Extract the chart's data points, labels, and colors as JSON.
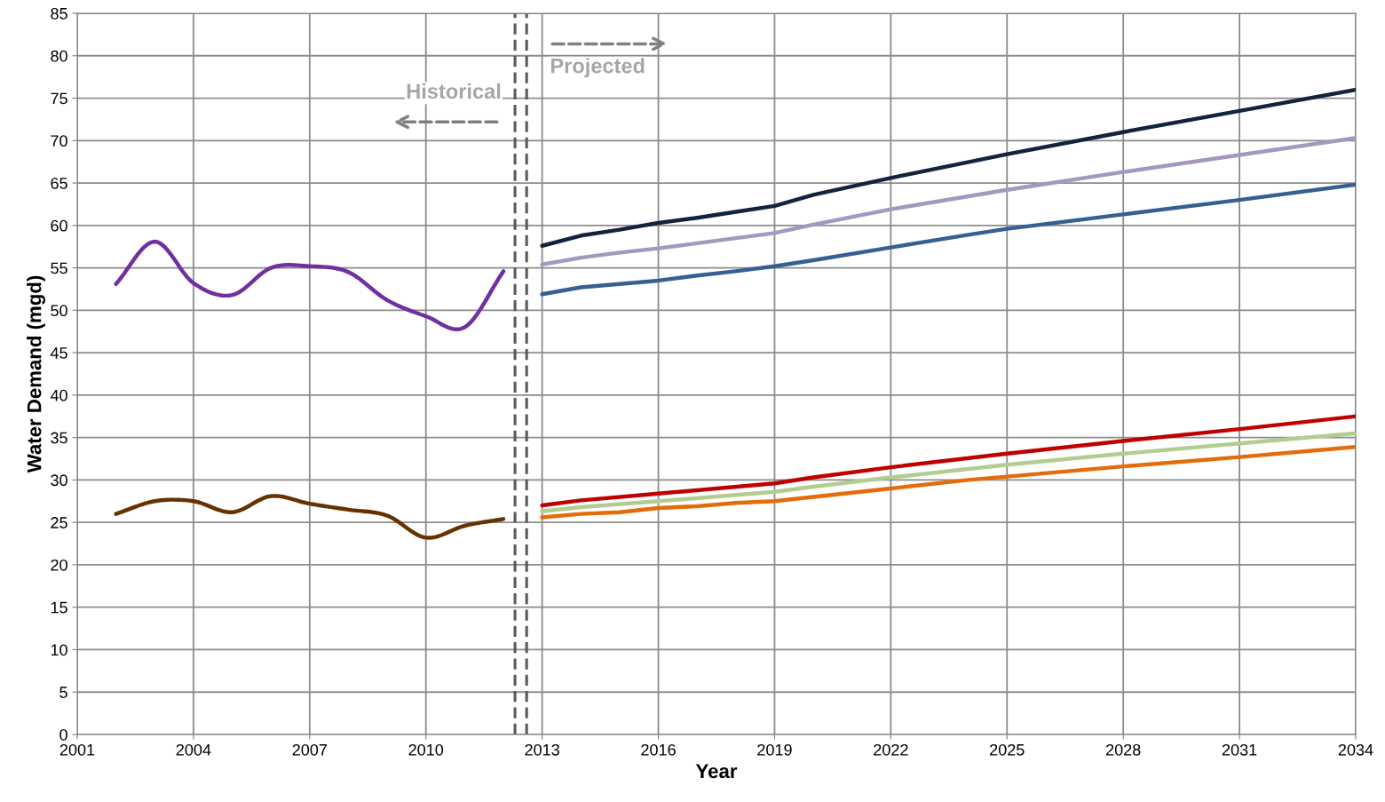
{
  "chart_data": {
    "type": "line",
    "xlabel": "Year",
    "ylabel": "Water Demand (mgd)",
    "xlim": [
      2001,
      2034
    ],
    "xticks": [
      2001,
      2004,
      2007,
      2010,
      2013,
      2016,
      2019,
      2022,
      2025,
      2028,
      2031,
      2034
    ],
    "ylim": [
      0,
      85
    ],
    "yticks": [
      0,
      5,
      10,
      15,
      20,
      25,
      30,
      35,
      40,
      45,
      50,
      55,
      60,
      65,
      70,
      75,
      80,
      85
    ],
    "grid": true,
    "line_style": "solid",
    "marker": "none",
    "annotations": [
      "Historical",
      "Projected"
    ],
    "ref_lines": [
      {
        "axis": "x",
        "value": 2012.3,
        "color": "#595959",
        "line_style": "dashed"
      },
      {
        "axis": "x",
        "value": 2012.6,
        "color": "#595959",
        "line_style": "dashed"
      }
    ],
    "series": [
      {
        "color": "#7030a0",
        "x": [
          2002,
          2003,
          2004,
          2005,
          2006,
          2007,
          2008,
          2009,
          2010,
          2011,
          2012
        ],
        "values": [
          53.1,
          58.1,
          53.2,
          51.8,
          55.0,
          55.2,
          54.5,
          51.2,
          49.3,
          48.0,
          54.6
        ]
      },
      {
        "color": "#663300",
        "x": [
          2002,
          2003,
          2004,
          2005,
          2006,
          2007,
          2008,
          2009,
          2010,
          2011,
          2012
        ],
        "values": [
          26.0,
          27.5,
          27.5,
          26.2,
          28.1,
          27.2,
          26.5,
          25.8,
          23.2,
          24.6,
          25.4
        ]
      },
      {
        "color": "#10243e",
        "x": [
          2013,
          2014,
          2015,
          2016,
          2017,
          2018,
          2019,
          2020,
          2022,
          2025,
          2028,
          2031,
          2034
        ],
        "values": [
          57.6,
          58.8,
          59.5,
          60.3,
          60.9,
          61.6,
          62.3,
          63.6,
          65.6,
          68.4,
          71.0,
          73.5,
          76.0
        ]
      },
      {
        "color": "#a597c2",
        "x": [
          2013,
          2014,
          2015,
          2016,
          2017,
          2018,
          2019,
          2020,
          2022,
          2025,
          2028,
          2031,
          2034
        ],
        "values": [
          55.4,
          56.2,
          56.8,
          57.3,
          57.9,
          58.5,
          59.1,
          60.1,
          61.9,
          64.2,
          66.3,
          68.3,
          70.3
        ]
      },
      {
        "color": "#366092",
        "x": [
          2013,
          2014,
          2016,
          2017,
          2018,
          2019,
          2020,
          2022,
          2024,
          2025,
          2028,
          2031,
          2034
        ],
        "values": [
          51.9,
          52.7,
          53.5,
          54.1,
          54.6,
          55.2,
          55.9,
          57.4,
          58.9,
          59.6,
          61.3,
          63.0,
          64.8
        ]
      },
      {
        "color": "#c00000",
        "x": [
          2013,
          2014,
          2016,
          2019,
          2020,
          2022,
          2025,
          2028,
          2031,
          2034
        ],
        "values": [
          27.0,
          27.6,
          28.4,
          29.6,
          30.3,
          31.5,
          33.1,
          34.6,
          36.0,
          37.5
        ]
      },
      {
        "color": "#b3cc8f",
        "x": [
          2013,
          2014,
          2016,
          2019,
          2020,
          2022,
          2025,
          2028,
          2031,
          2034
        ],
        "values": [
          26.3,
          26.8,
          27.5,
          28.6,
          29.2,
          30.3,
          31.8,
          33.1,
          34.3,
          35.5
        ]
      },
      {
        "color": "#e46c0a",
        "x": [
          2013,
          2014,
          2015,
          2016,
          2017,
          2018,
          2019,
          2020,
          2022,
          2024,
          2025,
          2028,
          2031,
          2034
        ],
        "values": [
          25.6,
          26.0,
          26.2,
          26.7,
          26.9,
          27.3,
          27.5,
          28.0,
          29.0,
          30.0,
          30.4,
          31.6,
          32.7,
          33.9
        ]
      }
    ]
  }
}
